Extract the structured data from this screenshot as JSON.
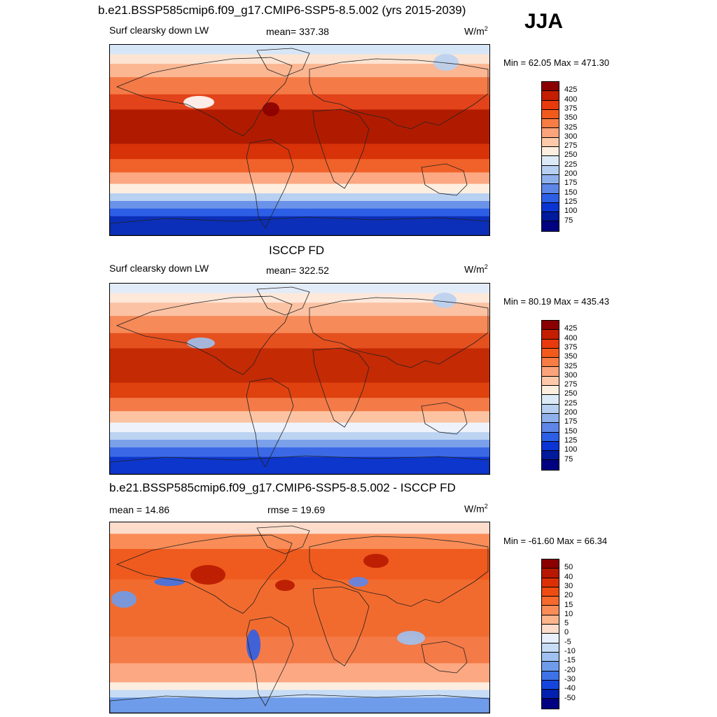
{
  "main_title": "b.e21.BSSP585cmip6.f09_g17.CMIP6-SSP5-8.5.002 (yrs 2015-2039)",
  "season": "JJA",
  "panels": [
    {
      "title": "",
      "left": "Surf clearsky down LW",
      "center": "mean= 337.38",
      "units_base": "W/m",
      "units_exp": "2",
      "minmax": "Min =  62.05 Max = 471.30",
      "colorbar": {
        "labels": [
          "425",
          "400",
          "375",
          "350",
          "325",
          "300",
          "275",
          "250",
          "225",
          "200",
          "175",
          "150",
          "125",
          "100",
          "75"
        ],
        "colors": [
          "#8b0000",
          "#c41d00",
          "#e83a0c",
          "#f25a1c",
          "#f77d45",
          "#fba37a",
          "#fdc9a8",
          "#fdeee0",
          "#dce9f7",
          "#b7d0f1",
          "#8eb1ec",
          "#5e86e8",
          "#2d5fe6",
          "#0b34d4",
          "#001a9e",
          "#000080"
        ]
      },
      "map_style": "clearsky"
    },
    {
      "title": "ISCCP FD",
      "left": "Surf clearsky down LW",
      "center": "mean= 322.52",
      "units_base": "W/m",
      "units_exp": "2",
      "minmax": "Min =  80.19 Max = 435.43",
      "colorbar": {
        "labels": [
          "425",
          "400",
          "375",
          "350",
          "325",
          "300",
          "275",
          "250",
          "225",
          "200",
          "175",
          "150",
          "125",
          "100",
          "75"
        ],
        "colors": [
          "#8b0000",
          "#c41d00",
          "#e83a0c",
          "#f25a1c",
          "#f77d45",
          "#fba37a",
          "#fdc9a8",
          "#fdeee0",
          "#dce9f7",
          "#b7d0f1",
          "#8eb1ec",
          "#5e86e8",
          "#2d5fe6",
          "#0b34d4",
          "#001a9e",
          "#000080"
        ]
      },
      "map_style": "obs"
    },
    {
      "title": "b.e21.BSSP585cmip6.f09_g17.CMIP6-SSP5-8.5.002 - ISCCP FD",
      "left": "mean =  14.86",
      "center": "rmse =  19.69",
      "units_base": "W/m",
      "units_exp": "2",
      "minmax": "Min = -61.60 Max =  66.34",
      "colorbar": {
        "labels": [
          "50",
          "40",
          "30",
          "20",
          "15",
          "10",
          "5",
          "0",
          "-5",
          "-10",
          "-15",
          "-20",
          "-30",
          "-40",
          "-50"
        ],
        "colors": [
          "#8b0000",
          "#b81800",
          "#dd2f06",
          "#ef4c12",
          "#f66a2e",
          "#f98c57",
          "#fcb48c",
          "#fddccb",
          "#e7f0fb",
          "#c7dcf5",
          "#9fc1ef",
          "#6f9cea",
          "#3e73e8",
          "#1446de",
          "#0020b0",
          "#000080"
        ]
      },
      "map_style": "diff"
    }
  ]
}
